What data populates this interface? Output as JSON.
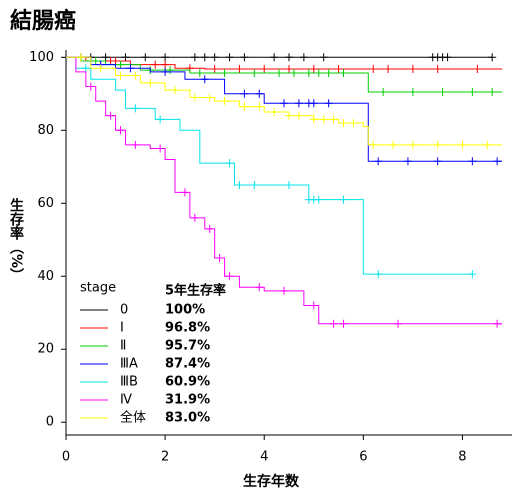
{
  "chart_data": {
    "type": "step",
    "title": "結腸癌",
    "xlabel": "生存年数",
    "ylabel": "生存率（%）",
    "xlim": [
      0,
      9
    ],
    "xticks": [
      0,
      2,
      4,
      6,
      8
    ],
    "ylim": [
      -3.5,
      102
    ],
    "yticks": [
      0,
      20,
      40,
      60,
      80,
      100
    ],
    "legend_title": "stage",
    "legend_header": "5年生存率",
    "series": [
      {
        "name": "0",
        "rate": "100%",
        "color": "#000000",
        "x": [
          0,
          8.6
        ],
        "values": [
          100,
          100
        ],
        "censored": [
          0.3,
          0.5,
          0.8,
          1.2,
          1.6,
          2.0,
          2.6,
          2.8,
          3.0,
          3.3,
          3.6,
          4.2,
          4.5,
          4.8,
          5.2,
          7.4,
          7.5,
          7.6,
          7.7,
          8.6
        ]
      },
      {
        "name": "Ⅰ",
        "rate": "96.8%",
        "color": "#ff0000",
        "x": [
          0,
          0.4,
          1.3,
          2.2,
          2.8,
          8.8
        ],
        "values": [
          100,
          99,
          98,
          97,
          96.8,
          96.8
        ],
        "censored": [
          0.9,
          1.0,
          1.8,
          2.0,
          2.5,
          3.0,
          3.5,
          4.0,
          4.5,
          5.0,
          5.5,
          6.2,
          6.5,
          7.0,
          7.5,
          8.3
        ]
      },
      {
        "name": "Ⅱ",
        "rate": "95.7%",
        "color": "#00cc00",
        "x": [
          0,
          0.3,
          0.8,
          1.5,
          2.5,
          6.1,
          8.8
        ],
        "values": [
          100,
          99,
          98,
          96.5,
          95.7,
          90.5,
          90.5
        ],
        "censored": [
          0.6,
          1.1,
          1.7,
          2.1,
          2.7,
          3.2,
          3.8,
          4.3,
          4.6,
          4.9,
          5.1,
          5.3,
          5.6,
          6.4,
          7.0,
          7.6,
          8.2,
          8.6
        ]
      },
      {
        "name": "ⅢA",
        "rate": "87.4%",
        "color": "#0000ff",
        "x": [
          0,
          0.5,
          1.0,
          1.7,
          2.4,
          3.2,
          4.0,
          6.1,
          8.8
        ],
        "values": [
          100,
          98,
          97,
          96,
          94,
          90,
          87.4,
          71.5,
          71.5
        ],
        "censored": [
          0.7,
          1.3,
          2.0,
          2.8,
          3.6,
          3.9,
          4.4,
          4.7,
          4.9,
          5.0,
          5.3,
          6.3,
          6.9,
          7.5,
          8.2,
          8.7
        ]
      },
      {
        "name": "ⅢB",
        "rate": "60.9%",
        "color": "#00e5ee",
        "x": [
          0,
          0.2,
          0.5,
          1.0,
          1.2,
          1.8,
          2.3,
          2.7,
          3.4,
          4.9,
          6.0,
          8.2
        ],
        "values": [
          100,
          97,
          94,
          91,
          86,
          83,
          80,
          71,
          65,
          61,
          40.6,
          40.6
        ],
        "censored": [
          0.4,
          1.4,
          1.9,
          3.3,
          3.5,
          3.8,
          4.5,
          4.9,
          5.0,
          5.1,
          5.6,
          6.3,
          8.2
        ]
      },
      {
        "name": "Ⅳ",
        "rate": "31.9%",
        "color": "#ff00ff",
        "x": [
          0,
          0.2,
          0.4,
          0.6,
          0.8,
          1.0,
          1.2,
          1.7,
          2.0,
          2.2,
          2.5,
          2.8,
          3.0,
          3.2,
          3.5,
          4.0,
          4.8,
          5.1,
          8.8
        ],
        "values": [
          100,
          96,
          92,
          88,
          84,
          80,
          76,
          75,
          72,
          63,
          56,
          53,
          45,
          40,
          37,
          36,
          32,
          27,
          27
        ],
        "censored": [
          0.5,
          0.9,
          1.1,
          1.4,
          1.9,
          2.4,
          2.6,
          2.9,
          3.1,
          3.3,
          3.9,
          4.4,
          5.0,
          5.4,
          5.6,
          6.7,
          8.7
        ]
      },
      {
        "name": "全体",
        "rate": "83.0%",
        "color": "#ffff00",
        "x": [
          0,
          0.5,
          1.0,
          1.5,
          2.0,
          2.5,
          3.0,
          3.5,
          4.0,
          4.5,
          5.0,
          5.5,
          6.0,
          6.1,
          8.8
        ],
        "values": [
          100,
          97,
          95,
          93,
          91,
          89,
          88,
          86.5,
          85,
          84,
          83,
          82,
          81,
          76,
          76
        ],
        "censored": [
          0.3,
          0.7,
          1.1,
          1.4,
          1.7,
          2.2,
          2.6,
          2.9,
          3.2,
          3.6,
          3.9,
          4.2,
          4.5,
          4.7,
          5.0,
          5.2,
          5.4,
          5.6,
          5.8,
          6.2,
          6.6,
          7.0,
          7.5,
          8.0,
          8.5
        ]
      }
    ]
  }
}
